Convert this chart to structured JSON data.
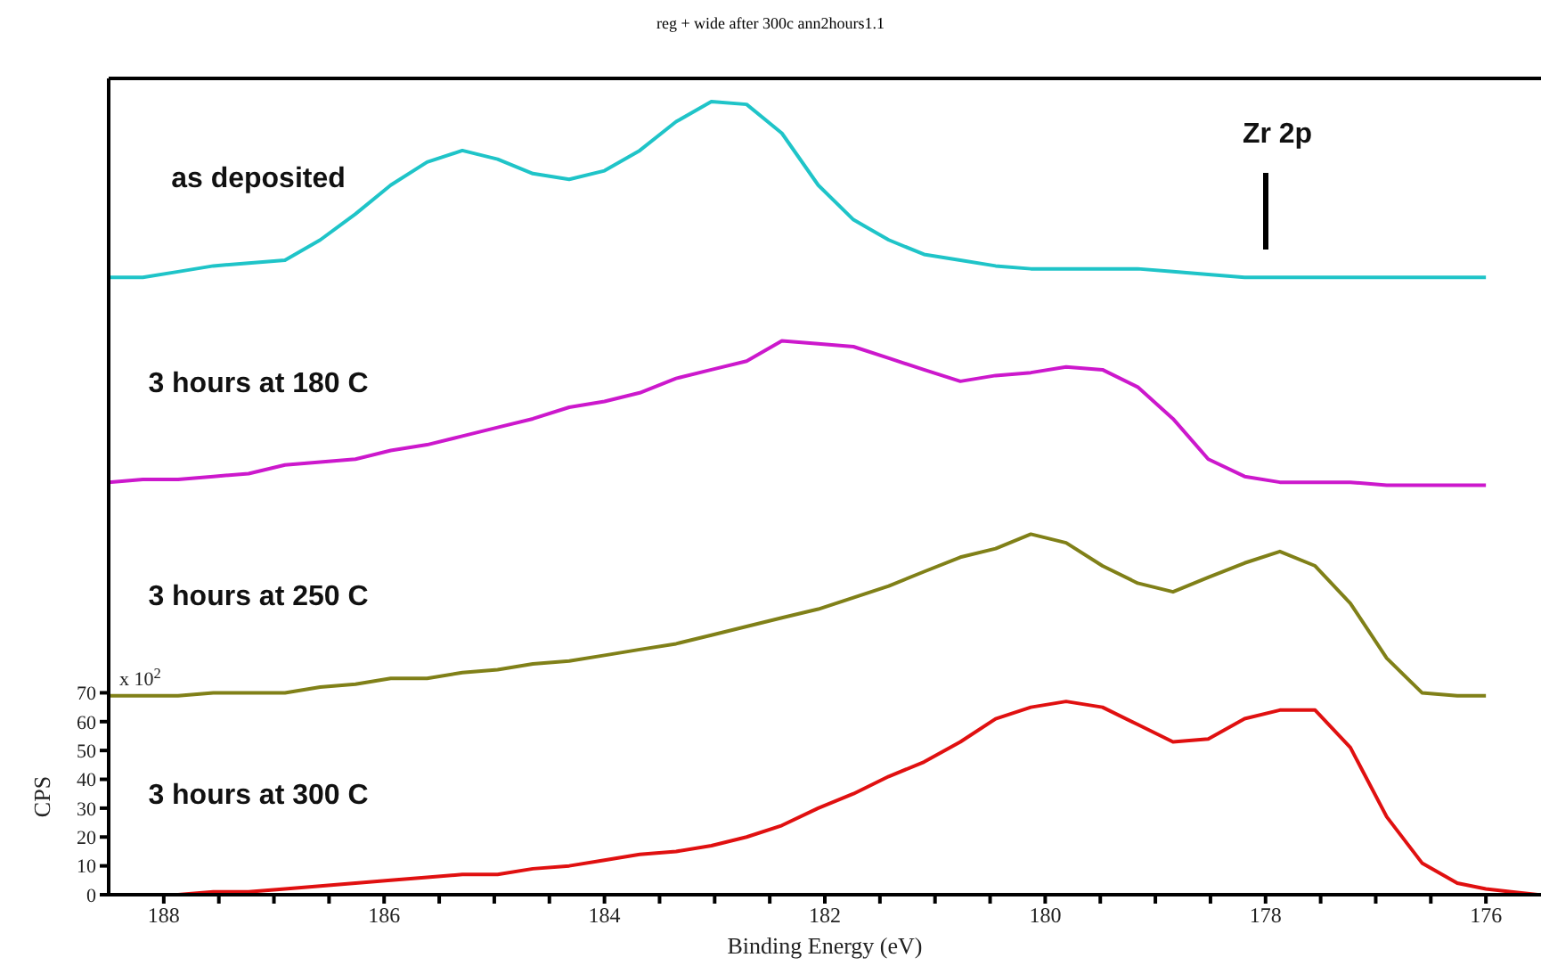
{
  "chart_data": {
    "type": "line",
    "title": "reg + wide after 300c ann2hours1.1",
    "xlabel": "Binding Energy (eV)",
    "ylabel": "CPS",
    "x": [
      188.5,
      188.19,
      187.87,
      187.55,
      187.23,
      186.9,
      186.58,
      186.26,
      185.94,
      185.61,
      185.29,
      184.97,
      184.65,
      184.32,
      184.0,
      183.68,
      183.35,
      183.03,
      182.71,
      182.39,
      182.06,
      181.74,
      181.42,
      181.1,
      180.77,
      180.45,
      180.13,
      179.81,
      179.48,
      179.16,
      178.84,
      178.52,
      178.19,
      177.87,
      177.55,
      177.23,
      176.9,
      176.58,
      176.26,
      176.0,
      175.77,
      175.53
    ],
    "series": [
      {
        "name": "as deposited",
        "color": "#1fc4c8",
        "values": [
          214,
          214,
          216,
          218,
          219,
          220,
          227,
          236,
          246,
          254,
          258,
          255,
          250,
          248,
          251,
          258,
          268,
          275,
          274,
          264,
          246,
          234,
          227,
          222,
          220,
          218,
          217,
          217,
          217,
          217,
          216,
          215,
          214,
          214,
          214,
          214,
          214,
          214,
          214,
          214,
          null,
          null
        ]
      },
      {
        "name": "3 hours at 180 C",
        "color": "#cc18cc",
        "values": [
          143,
          144,
          144,
          145,
          146,
          149,
          150,
          151,
          154,
          156,
          159,
          162,
          165,
          169,
          171,
          174,
          179,
          182,
          185,
          192,
          191,
          190,
          186,
          182,
          178,
          180,
          181,
          183,
          182,
          176,
          165,
          151,
          145,
          143,
          143,
          143,
          142,
          142,
          142,
          142,
          null,
          null
        ]
      },
      {
        "name": "3 hours at 250 C",
        "color": "#808018",
        "values": [
          69,
          69,
          69,
          70,
          70,
          70,
          72,
          73,
          75,
          75,
          77,
          78,
          80,
          81,
          83,
          85,
          87,
          90,
          93,
          96,
          99,
          103,
          107,
          112,
          117,
          120,
          125,
          122,
          114,
          108,
          105,
          110,
          115,
          119,
          114,
          101,
          82,
          70,
          69,
          69,
          null,
          null
        ]
      },
      {
        "name": "3 hours at 300 C",
        "color": "#e01010",
        "values": [
          0,
          0,
          0,
          1,
          1,
          2,
          3,
          4,
          5,
          6,
          7,
          7,
          9,
          10,
          12,
          14,
          15,
          17,
          20,
          24,
          30,
          35,
          41,
          46,
          53,
          61,
          65,
          67,
          65,
          59,
          53,
          54,
          61,
          64,
          64,
          51,
          27,
          11,
          4,
          2,
          1,
          0
        ]
      }
    ],
    "xlim": [
      188.5,
      175.5
    ],
    "ylim": [
      0,
      283
    ],
    "xticks": [
      188,
      {
        "value": 187.5,
        "label": null
      },
      {
        "value": 187,
        "label": null
      },
      {
        "value": 186.5,
        "label": null
      },
      186,
      {
        "value": 185.5,
        "label": null
      },
      {
        "value": 185,
        "label": null
      },
      {
        "value": 184.5,
        "label": null
      },
      184,
      {
        "value": 183.5,
        "label": null
      },
      {
        "value": 183,
        "label": null
      },
      {
        "value": 182.5,
        "label": null
      },
      182,
      {
        "value": 181.5,
        "label": null
      },
      {
        "value": 181,
        "label": null
      },
      {
        "value": 180.5,
        "label": null
      },
      180,
      {
        "value": 179.5,
        "label": null
      },
      {
        "value": 179,
        "label": null
      },
      {
        "value": 178.5,
        "label": null
      },
      178,
      {
        "value": 177.5,
        "label": null
      },
      {
        "value": 177,
        "label": null
      },
      {
        "value": 176.5,
        "label": null
      },
      176
    ],
    "yticks": [
      0,
      10,
      20,
      30,
      40,
      50,
      60,
      70
    ],
    "annotations": [
      "x 10$^{2}$",
      "Zr 2p"
    ],
    "grid": false,
    "marker": "none",
    "line_style": "solid"
  }
}
